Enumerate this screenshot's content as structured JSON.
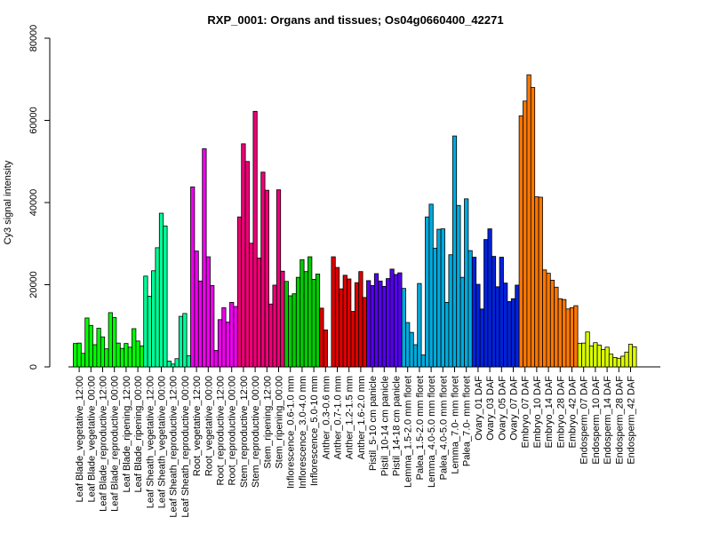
{
  "chart_data": {
    "type": "bar",
    "title": "RXP_0001: Organs and tissues; Os04g0660400_42271",
    "xlabel": "",
    "ylabel": "Cy3 signal intensity",
    "ylim": [
      0,
      80000
    ],
    "yticks": [
      0,
      20000,
      40000,
      60000,
      80000
    ],
    "grid": false,
    "legend": "none",
    "categories": [
      "Leaf Blade_vegetative_12:00",
      "Leaf Blade_vegetative_00:00",
      "Leaf Blade_reproductive_12:00",
      "Leaf Blade_reproductive_00:00",
      "Leaf Blade_ripening_12:00",
      "Leaf Blade_ripening_00:00",
      "Leaf Sheath_vegetative_12:00",
      "Leaf Sheath_vegetative_00:00",
      "Leaf Sheath_reproductive_12:00",
      "Leaf Sheath_reproductive_00:00",
      "Root_vegetative_12:00",
      "Root_vegetative_00:00",
      "Root_reproductive_12:00",
      "Root_reproductive_00:00",
      "Stem_reproductive_12:00",
      "Stem_reproductive_00:00",
      "Stem_ripening_12:00",
      "Stem_ripening_00:00",
      "Inflorescence_0.6-1.0 mm",
      "Inflorescence_3.0-4.0 mm",
      "Inflorescence_5.0-10 mm",
      "Anther_0.3-0.6 mm",
      "Anther_0.7-1.0 mm",
      "Anther_1.2-1.5 mm",
      "Anther_1.6-2.0 mm",
      "Pistil_5-10 cm panicle",
      "Pistil_10-14 cm panicle",
      "Pistil_14-18 cm panicle",
      "Lemma_1.5-2.0 mm floret",
      "Palea_1.5-2.0 mm floret",
      "Lemma_4.0-5.0 mm floret",
      "Palea_4.0-5.0 mm floret",
      "Lemma_7.0- mm floret",
      "Palea_7.0- mm floret",
      "Ovary_01 DAF",
      "Ovary_03 DAF",
      "Ovary_05 DAF",
      "Ovary_07 DAF",
      "Embryo_07 DAF",
      "Embryo_10 DAF",
      "Embryo_14 DAF",
      "Embryo_28 DAF",
      "Embryo_42 DAF",
      "Endosperm_07 DAF",
      "Endosperm_10 DAF",
      "Endosperm_14 DAF",
      "Endosperm_28 DAF",
      "Endosperm_42 DAF"
    ],
    "colors": [
      "#00FF00",
      "#00FF00",
      "#00FF00",
      "#00FF00",
      "#00FF00",
      "#00FF00",
      "#00FF99",
      "#00FF99",
      "#00FF99",
      "#00FF99",
      "#EE00EE",
      "#EE00EE",
      "#EE00EE",
      "#EE00EE",
      "#EE0077",
      "#EE0077",
      "#EE0077",
      "#EE0077",
      "#00CC00",
      "#00CC00",
      "#00CC00",
      "#DD0000",
      "#DD0000",
      "#DD0000",
      "#DD0000",
      "#5500EE",
      "#5500EE",
      "#5500EE",
      "#00AADD",
      "#00AADD",
      "#00AADD",
      "#00AADD",
      "#00AADD",
      "#00AADD",
      "#0022DD",
      "#0022DD",
      "#0022DD",
      "#0022DD",
      "#FF7700",
      "#FF7700",
      "#FF7700",
      "#FF7700",
      "#FF7700",
      "#DDFF00",
      "#DDFF00",
      "#DDFF00",
      "#DDFF00",
      "#DDFF00"
    ],
    "values": [
      [
        5700,
        5800,
        3300
      ],
      [
        11900,
        10100,
        5400
      ],
      [
        9400,
        7300,
        4400
      ],
      [
        13200,
        12000,
        5800
      ],
      [
        4500,
        5700,
        4800
      ],
      [
        9300,
        6300,
        5100
      ],
      [
        22100,
        17200,
        23400
      ],
      [
        29000,
        37400,
        34300
      ],
      [
        1400,
        700,
        2000
      ],
      [
        12300,
        13000,
        2700
      ],
      [
        43800,
        28200,
        20900
      ],
      [
        53100,
        26800,
        19800
      ],
      [
        4000,
        11500,
        14400
      ],
      [
        10900,
        15700,
        14700
      ],
      [
        36500,
        54300,
        50000
      ],
      [
        30100,
        62200,
        26500
      ],
      [
        47400,
        43000,
        15300
      ],
      [
        19900,
        43100,
        23300
      ],
      [
        20800,
        17300,
        17800
      ],
      [
        21800,
        26100,
        23200
      ],
      [
        26800,
        21300,
        22600
      ],
      [
        14300,
        9000,
        0
      ],
      [
        26800,
        24200,
        19000
      ],
      [
        22300,
        21400,
        13500
      ],
      [
        20500,
        23200,
        16900
      ],
      [
        21000,
        19800,
        22700
      ],
      [
        20900,
        19600,
        21500
      ],
      [
        23800,
        22500,
        22900
      ],
      [
        19100,
        10800,
        8400
      ],
      [
        5400,
        20300,
        2900
      ],
      [
        36500,
        39600,
        28900
      ],
      [
        33500,
        33600,
        15700
      ],
      [
        27300,
        56200,
        39300
      ],
      [
        21800,
        40900,
        28300
      ],
      [
        26700,
        20100,
        14100
      ],
      [
        31000,
        33600,
        26900
      ],
      [
        19500,
        26700,
        20400
      ],
      [
        15900,
        16600,
        19900
      ],
      [
        61100,
        64700,
        71100
      ],
      [
        68000,
        41400,
        41300
      ],
      [
        23600,
        22800,
        21100
      ],
      [
        19400,
        16600,
        16400
      ],
      [
        14100,
        14400,
        14900
      ],
      [
        5700,
        5800,
        8500
      ],
      [
        5100,
        5900,
        5300
      ],
      [
        4200,
        4800,
        3100
      ],
      [
        2300,
        2100,
        2600
      ],
      [
        3600,
        5500,
        4900
      ]
    ]
  }
}
